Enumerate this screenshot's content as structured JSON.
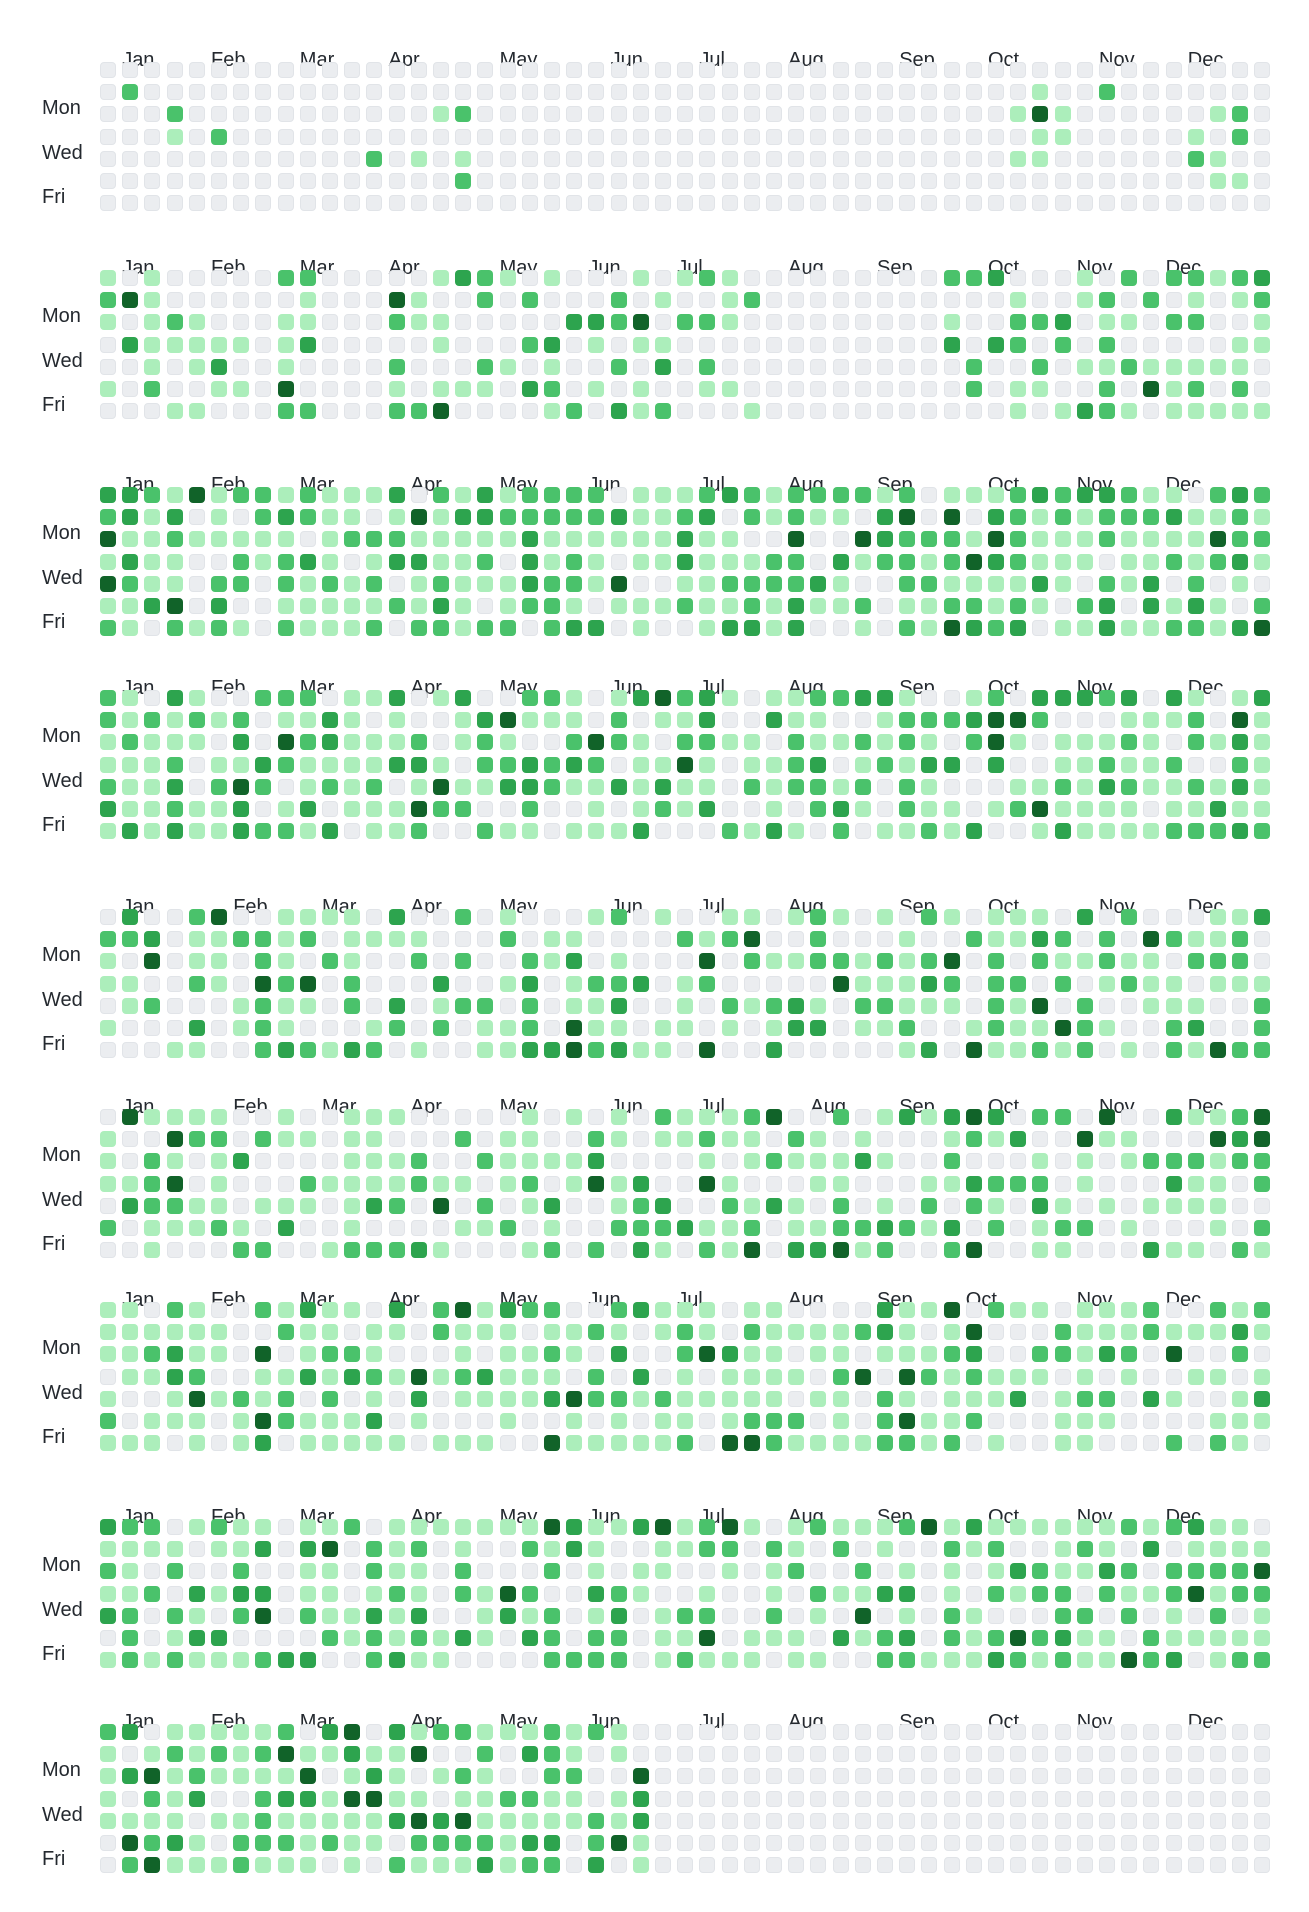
{
  "colors": {
    "level0": "#ebedf0",
    "level1": "#aceebb",
    "level2": "#4ac26b",
    "level3": "#2da44e",
    "level4": "#116329"
  },
  "weekday_labels": [
    "Mon",
    "Wed",
    "Fri"
  ],
  "graphs": [
    {
      "months": [
        "Jan",
        "Feb",
        "Mar",
        "Apr",
        "May",
        "Jun",
        "Jul",
        "Aug",
        "Sep",
        "Oct",
        "Nov",
        "Dec"
      ],
      "month_weeks": [
        1,
        5,
        9,
        13,
        18,
        23,
        27,
        31,
        36,
        40,
        45,
        49
      ],
      "weeks": 53,
      "first_day": 0,
      "cells": {
        "1": [
          0,
          2,
          0,
          0,
          0,
          0,
          0
        ],
        "3": [
          0,
          0,
          2,
          1,
          0,
          0,
          0
        ],
        "5": [
          0,
          0,
          0,
          2,
          0,
          0,
          0
        ],
        "12": [
          0,
          0,
          0,
          0,
          2,
          0,
          0
        ],
        "14": [
          0,
          0,
          0,
          0,
          1,
          0,
          0
        ],
        "15": [
          0,
          0,
          1,
          0,
          0,
          0,
          0
        ],
        "16": [
          0,
          0,
          2,
          0,
          1,
          2,
          0
        ],
        "41": [
          0,
          0,
          1,
          0,
          1,
          0,
          0
        ],
        "42": [
          0,
          1,
          4,
          1,
          1,
          0,
          0
        ],
        "43": [
          0,
          0,
          1,
          1,
          0,
          0,
          0
        ],
        "45": [
          0,
          2,
          0,
          0,
          0,
          0,
          0
        ],
        "49": [
          0,
          0,
          0,
          1,
          2,
          0,
          0
        ],
        "50": [
          0,
          0,
          1,
          0,
          1,
          1,
          0
        ],
        "51": [
          0,
          0,
          2,
          2,
          0,
          1,
          0
        ]
      },
      "fill": null
    },
    {
      "months": [
        "Jan",
        "Feb",
        "Mar",
        "Apr",
        "May",
        "Jun",
        "Jul",
        "Aug",
        "Sep",
        "Oct",
        "Nov",
        "Dec"
      ],
      "month_weeks": [
        1,
        5,
        9,
        13,
        18,
        22,
        26,
        31,
        35,
        40,
        44,
        48
      ],
      "weeks": 53,
      "first_day": 0,
      "fill": {
        "seed": 2,
        "density": 0.55,
        "ranges": [
          [
            0,
            7
          ],
          [
            8,
            10
          ],
          [
            13,
            30
          ],
          [
            38,
            53
          ]
        ]
      }
    },
    {
      "months": [
        "Jan",
        "Feb",
        "Mar",
        "Apr",
        "May",
        "Jun",
        "Jul",
        "Aug",
        "Sep",
        "Oct",
        "Nov",
        "Dec"
      ],
      "month_weeks": [
        1,
        5,
        9,
        14,
        18,
        22,
        27,
        31,
        35,
        40,
        44,
        48
      ],
      "weeks": 53,
      "first_day": 0,
      "fill": {
        "seed": 3,
        "density": 0.85,
        "ranges": [
          [
            0,
            53
          ]
        ]
      }
    },
    {
      "months": [
        "Jan",
        "Feb",
        "Mar",
        "Apr",
        "May",
        "Jun",
        "Jul",
        "Aug",
        "Sep",
        "Oct",
        "Nov",
        "Dec"
      ],
      "month_weeks": [
        1,
        5,
        9,
        14,
        18,
        23,
        27,
        31,
        36,
        40,
        44,
        49
      ],
      "weeks": 53,
      "first_day": 0,
      "fill": {
        "seed": 4,
        "density": 0.8,
        "ranges": [
          [
            0,
            53
          ]
        ]
      }
    },
    {
      "months": [
        "Jan",
        "Feb",
        "Mar",
        "Apr",
        "May",
        "Jun",
        "Jul",
        "Aug",
        "Sep",
        "Oct",
        "Nov",
        "Dec"
      ],
      "month_weeks": [
        1,
        6,
        10,
        14,
        18,
        23,
        27,
        31,
        36,
        40,
        45,
        49
      ],
      "weeks": 53,
      "first_day": 0,
      "fill": {
        "seed": 5,
        "density": 0.65,
        "ranges": [
          [
            0,
            53
          ]
        ]
      }
    },
    {
      "months": [
        "Jan",
        "Feb",
        "Mar",
        "Apr",
        "May",
        "Jun",
        "Jul",
        "Aug",
        "Sep",
        "Oct",
        "Nov",
        "Dec"
      ],
      "month_weeks": [
        1,
        6,
        10,
        14,
        18,
        23,
        27,
        32,
        36,
        40,
        45,
        49
      ],
      "weeks": 53,
      "first_day": 0,
      "fill": {
        "seed": 6,
        "density": 0.65,
        "ranges": [
          [
            0,
            53
          ]
        ]
      }
    },
    {
      "months": [
        "Jan",
        "Feb",
        "Mar",
        "Apr",
        "May",
        "Jun",
        "Jul",
        "Aug",
        "Sep",
        "Oct",
        "Nov",
        "Dec"
      ],
      "month_weeks": [
        1,
        5,
        9,
        13,
        18,
        22,
        26,
        31,
        35,
        39,
        44,
        48
      ],
      "weeks": 53,
      "first_day": 0,
      "fill": {
        "seed": 7,
        "density": 0.7,
        "ranges": [
          [
            0,
            53
          ]
        ]
      }
    },
    {
      "months": [
        "Jan",
        "Feb",
        "Mar",
        "Apr",
        "May",
        "Jun",
        "Jul",
        "Aug",
        "Sep",
        "Oct",
        "Nov",
        "Dec"
      ],
      "month_weeks": [
        1,
        5,
        9,
        14,
        18,
        22,
        27,
        31,
        35,
        40,
        44,
        48
      ],
      "weeks": 53,
      "first_day": 0,
      "fill": {
        "seed": 8,
        "density": 0.75,
        "ranges": [
          [
            0,
            53
          ]
        ]
      }
    },
    {
      "months": [
        "Jan",
        "Feb",
        "Mar",
        "Apr",
        "May",
        "Jun",
        "Jul",
        "Aug",
        "Sep",
        "Oct",
        "Nov",
        "Dec"
      ],
      "month_weeks": [
        1,
        5,
        9,
        14,
        18,
        22,
        27,
        31,
        36,
        40,
        44,
        49
      ],
      "weeks": 53,
      "first_day": 0,
      "fill": {
        "seed": 9,
        "density": 0.8,
        "ranges": [
          [
            0,
            25
          ]
        ]
      }
    }
  ]
}
